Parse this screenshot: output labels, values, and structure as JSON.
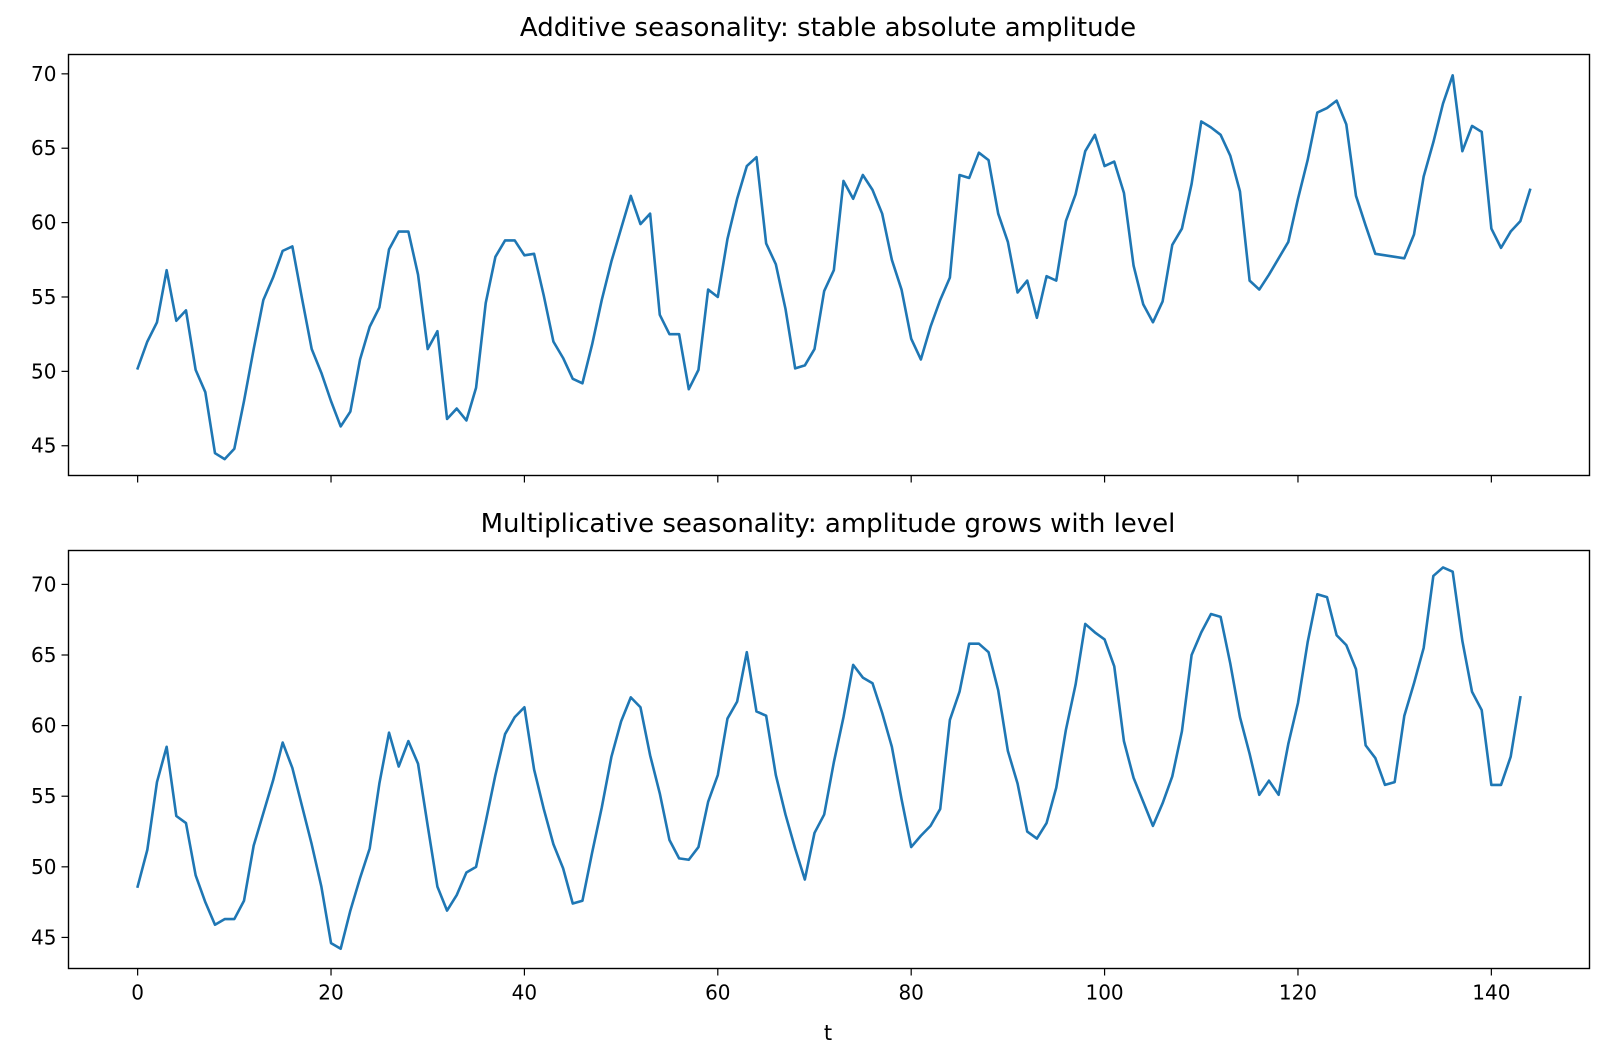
{
  "chart_data": [
    {
      "type": "line",
      "title": "Additive seasonality: stable absolute amplitude",
      "xlabel": "",
      "ylabel": "",
      "xlim": [
        -7.15,
        150.15
      ],
      "ylim": [
        43.0,
        71.3
      ],
      "xticks": [
        0,
        20,
        40,
        60,
        80,
        100,
        120,
        140
      ],
      "xtick_labels_visible": false,
      "yticks": [
        45,
        50,
        55,
        60,
        65,
        70
      ],
      "ytick_labels": [
        "45",
        "50",
        "55",
        "60",
        "65",
        "70"
      ],
      "grid": false,
      "legend": "none",
      "color": "#1f77b4",
      "series": [
        {
          "values": [
            50.2,
            52.0,
            53.3,
            56.8,
            53.4,
            54.1,
            50.1,
            48.6,
            44.5,
            44.1,
            44.8,
            48.0,
            51.5,
            54.8,
            56.3,
            58.1,
            58.4,
            54.9,
            51.5,
            49.9,
            48.0,
            46.3,
            47.3,
            50.8,
            53.0,
            54.3,
            58.2,
            59.4,
            59.4,
            56.5,
            51.5,
            52.7,
            46.8,
            47.5,
            46.7,
            48.9,
            54.6,
            57.7,
            58.8,
            58.8,
            57.8,
            57.9,
            55.1,
            52.0,
            50.9,
            49.5,
            49.2,
            51.8,
            54.8,
            57.4,
            59.6,
            61.8,
            59.9,
            60.6,
            53.8,
            52.5,
            52.5,
            48.8,
            50.1,
            55.5,
            55.0,
            58.9,
            61.6,
            63.8,
            64.4,
            58.6,
            57.2,
            54.2,
            50.2,
            50.4,
            51.5,
            55.4,
            56.8,
            62.8,
            61.6,
            63.2,
            62.2,
            60.6,
            57.5,
            55.5,
            52.2,
            50.8,
            53.0,
            54.8,
            56.3,
            63.2,
            63.0,
            64.7,
            64.2,
            60.6,
            58.7,
            55.3,
            56.1,
            53.6,
            56.4,
            56.1,
            60.1,
            61.9,
            64.8,
            65.9,
            63.8,
            64.1,
            62.0,
            57.1,
            54.5,
            53.3,
            54.7,
            58.5,
            59.6,
            62.6,
            66.8,
            66.4,
            65.9,
            64.5,
            62.1,
            56.1,
            55.5,
            56.5,
            57.6,
            58.7,
            61.6,
            64.2,
            67.4,
            67.7,
            68.2,
            66.6,
            61.8,
            59.8,
            57.9,
            57.8,
            57.7,
            57.6,
            59.2,
            63.1,
            65.4,
            68.0,
            69.9,
            64.8,
            66.5,
            66.1,
            59.6,
            58.3,
            59.4,
            60.1,
            62.2
          ]
        }
      ]
    },
    {
      "type": "line",
      "title": "Multiplicative seasonality: amplitude grows with level",
      "xlabel": "t",
      "ylabel": "",
      "xlim": [
        -7.15,
        150.15
      ],
      "ylim": [
        42.8,
        72.4
      ],
      "xticks": [
        0,
        20,
        40,
        60,
        80,
        100,
        120,
        140
      ],
      "xtick_labels": [
        "0",
        "20",
        "40",
        "60",
        "80",
        "100",
        "120",
        "140"
      ],
      "yticks": [
        45,
        50,
        55,
        60,
        65,
        70
      ],
      "ytick_labels": [
        "45",
        "50",
        "55",
        "60",
        "65",
        "70"
      ],
      "grid": false,
      "legend": "none",
      "color": "#1f77b4",
      "series": [
        {
          "values": [
            48.6,
            51.2,
            56.0,
            58.5,
            53.6,
            53.1,
            49.4,
            47.5,
            45.9,
            46.3,
            46.3,
            47.6,
            51.5,
            53.8,
            56.1,
            58.8,
            57.0,
            54.3,
            51.6,
            48.6,
            44.6,
            44.2,
            46.9,
            49.2,
            51.3,
            55.9,
            59.5,
            57.1,
            58.9,
            57.3,
            52.9,
            48.6,
            46.9,
            48.0,
            49.6,
            50.0,
            53.2,
            56.5,
            59.4,
            60.6,
            61.3,
            56.9,
            54.1,
            51.6,
            49.9,
            47.4,
            47.6,
            51.0,
            54.2,
            57.8,
            60.3,
            62.0,
            61.3,
            57.9,
            55.2,
            51.9,
            50.6,
            50.5,
            51.4,
            54.6,
            56.5,
            60.5,
            61.7,
            65.2,
            61.0,
            60.7,
            56.5,
            53.7,
            51.3,
            49.1,
            52.4,
            53.7,
            57.4,
            60.6,
            64.3,
            63.4,
            63.0,
            60.9,
            58.5,
            54.8,
            51.4,
            52.2,
            52.9,
            54.1,
            60.4,
            62.4,
            65.8,
            65.8,
            65.2,
            62.5,
            58.2,
            55.9,
            52.5,
            52.0,
            53.1,
            55.6,
            59.7,
            62.9,
            67.2,
            66.6,
            66.1,
            64.2,
            58.9,
            56.3,
            54.6,
            52.9,
            54.5,
            56.4,
            59.6,
            65.0,
            66.6,
            67.9,
            67.7,
            64.4,
            60.6,
            58.0,
            55.1,
            56.1,
            55.1,
            58.7,
            61.6,
            65.9,
            69.3,
            69.1,
            66.4,
            65.7,
            64.0,
            58.6,
            57.7,
            55.8,
            56.0,
            60.7,
            63.0,
            65.5,
            70.6,
            71.2,
            70.9,
            66.0,
            62.4,
            61.1,
            55.8,
            55.8,
            57.8,
            62.0
          ]
        }
      ]
    }
  ]
}
